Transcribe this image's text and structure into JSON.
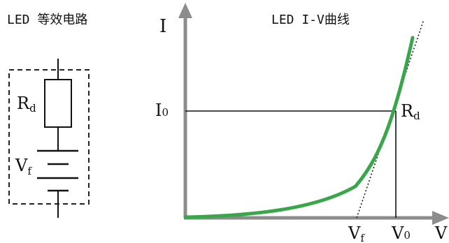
{
  "left_panel": {
    "title": "LED 等效电路",
    "resistor_label": {
      "main": "R",
      "sub": "d"
    },
    "voltage_label": {
      "main": "V",
      "sub": "f"
    }
  },
  "right_panel": {
    "title": "LED I-V曲线",
    "y_axis_label": "I",
    "x_axis_label": "V",
    "i0_label": {
      "main": "I",
      "sub": "0"
    },
    "rd_label": {
      "main": "R",
      "sub": "d"
    },
    "vf_label": {
      "main": "V",
      "sub": "f"
    },
    "v0_label": {
      "main": "V",
      "sub": "0"
    }
  },
  "colors": {
    "curve": "#3aa64a",
    "axis": "#8c8c8c",
    "line": "#111111",
    "text": "#111111"
  }
}
